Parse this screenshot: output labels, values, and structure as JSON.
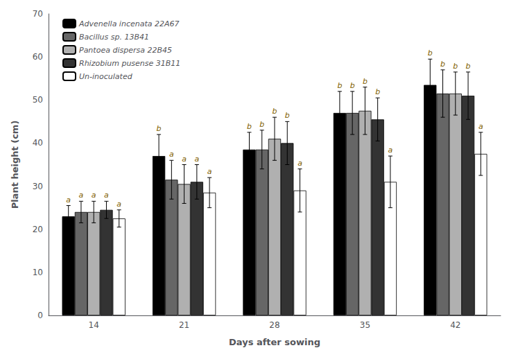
{
  "chart_data": {
    "type": "bar",
    "xlabel": "Days after sowing",
    "ylabel": "Plant height (cm)",
    "categories": [
      "14",
      "21",
      "28",
      "35",
      "42"
    ],
    "series": [
      {
        "name": "Advenella incenata 22A67",
        "color": "#000000",
        "values": [
          23.0,
          37.0,
          38.5,
          47.0,
          53.5
        ],
        "errors": [
          2.5,
          5.0,
          4.0,
          5.0,
          6.0
        ],
        "letters": [
          "a",
          "b",
          "b",
          "b",
          "b"
        ]
      },
      {
        "name": "Bacillus sp. 13B41",
        "color": "#666666",
        "values": [
          24.0,
          31.5,
          38.5,
          47.0,
          51.5
        ],
        "errors": [
          2.5,
          4.5,
          4.5,
          5.0,
          5.5
        ],
        "letters": [
          "a",
          "a",
          "b",
          "b",
          "b"
        ]
      },
      {
        "name": "Pantoea dispersa 22B45",
        "color": "#b0b0b0",
        "values": [
          24.0,
          30.5,
          41.0,
          47.5,
          51.5
        ],
        "errors": [
          2.5,
          4.5,
          5.0,
          5.5,
          5.0
        ],
        "letters": [
          "a",
          "a",
          "b",
          "b",
          "b"
        ]
      },
      {
        "name": "Rhizobium pusense 31B11",
        "color": "#333333",
        "values": [
          24.5,
          31.0,
          40.0,
          45.5,
          51.0
        ],
        "errors": [
          2.0,
          4.0,
          5.0,
          5.0,
          5.5
        ],
        "letters": [
          "a",
          "a",
          "b",
          "b",
          "b"
        ]
      },
      {
        "name": "Un-inoculated",
        "color": "#ffffff",
        "values": [
          22.5,
          28.5,
          29.0,
          31.0,
          37.5
        ],
        "errors": [
          2.0,
          3.5,
          5.0,
          6.0,
          5.0
        ],
        "letters": [
          "a",
          "a",
          "a",
          "a",
          "a"
        ]
      }
    ],
    "ylim": [
      0,
      70
    ],
    "yticks": [
      0,
      10,
      20,
      30,
      40,
      50,
      60,
      70
    ],
    "grid": false,
    "legend": "upper left"
  }
}
